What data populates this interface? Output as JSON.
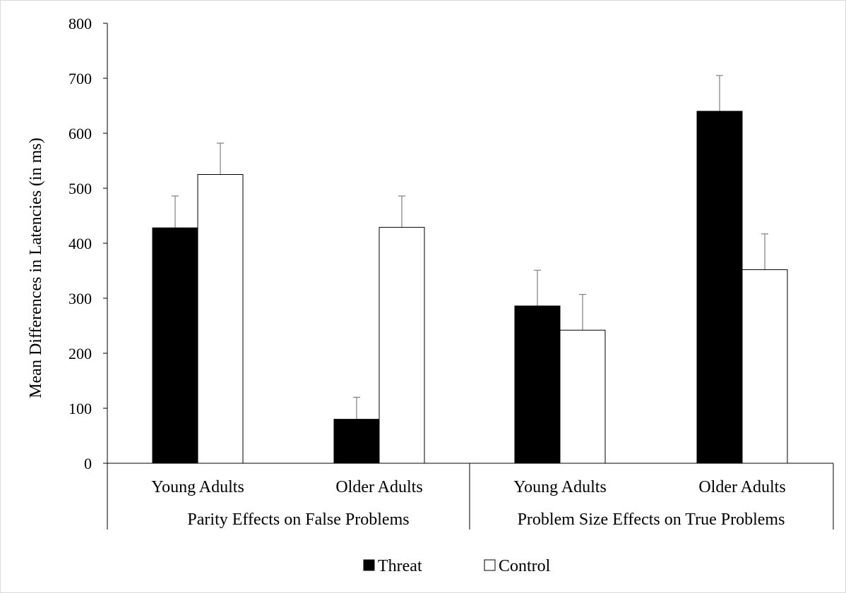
{
  "chart_data": {
    "type": "bar",
    "title": "",
    "ylabel": "Mean Differences in Latencies (in ms)",
    "xlabel": "",
    "ylim": [
      0,
      800
    ],
    "yticks": [
      0,
      100,
      200,
      300,
      400,
      500,
      600,
      700,
      800
    ],
    "groups": [
      {
        "label": "Parity Effects on False Problems",
        "categories": [
          "Young Adults",
          "Older Adults"
        ]
      },
      {
        "label": "Problem Size Effects on True Problems",
        "categories": [
          "Young Adults",
          "Older Adults"
        ]
      }
    ],
    "categories": [
      "Young Adults",
      "Older Adults",
      "Young Adults",
      "Older Adults"
    ],
    "series": [
      {
        "name": "Threat",
        "color": "#000000",
        "values": [
          428,
          80,
          286,
          640
        ],
        "error_upper": [
          486,
          120,
          351,
          705
        ]
      },
      {
        "name": "Control",
        "color": "#ffffff",
        "values": [
          525,
          429,
          242,
          352
        ],
        "error_upper": [
          582,
          486,
          307,
          417
        ]
      }
    ],
    "grid": false,
    "legend_position": "bottom-center"
  }
}
